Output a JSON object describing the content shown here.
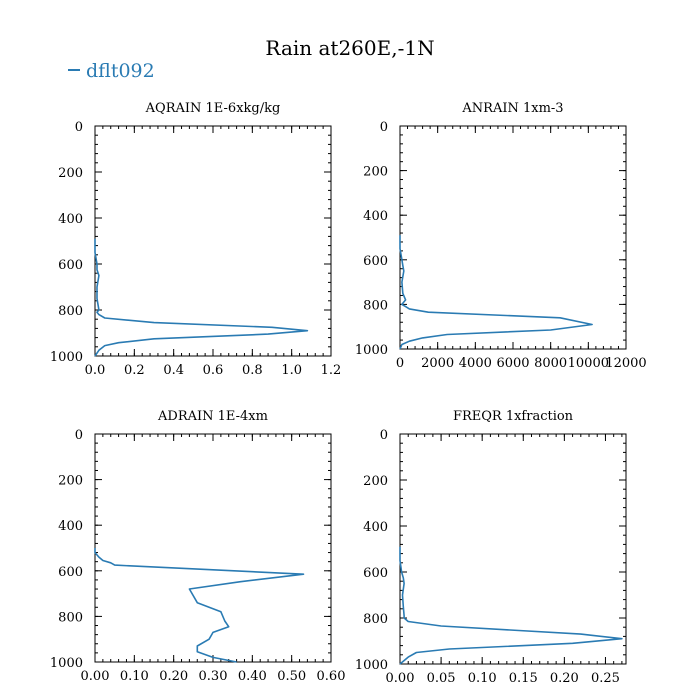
{
  "title": "Rain at260E,-1N",
  "legend": {
    "label": "dflt092",
    "color": "#2a7bb3"
  },
  "line_color": "#2a7bb3",
  "chart_data": [
    {
      "type": "line",
      "title": "AQRAIN  1E-6xkg/kg",
      "xlim": [
        0,
        1.2
      ],
      "ylim": [
        1000,
        0
      ],
      "xticks": [
        0,
        0.2,
        0.4,
        0.6,
        0.8,
        1.0,
        1.2
      ],
      "xtick_labels": [
        "0.0",
        "0.2",
        "0.4",
        "0.6",
        "0.8",
        "1.0",
        "1.2"
      ],
      "yticks": [
        0,
        200,
        400,
        600,
        800,
        1000
      ],
      "ytick_labels": [
        "0",
        "200",
        "400",
        "600",
        "800",
        "1000"
      ],
      "series": [
        {
          "x": [
            0.0,
            0.0,
            0.01,
            0.01,
            0.02,
            0.01,
            0.01,
            0.02,
            0.01,
            0.02,
            0.05,
            0.3,
            0.9,
            1.08,
            0.88,
            0.3,
            0.12,
            0.05,
            0.02,
            0.0
          ],
          "y": [
            490,
            550,
            600,
            625,
            650,
            700,
            750,
            800,
            810,
            820,
            835,
            855,
            875,
            890,
            905,
            925,
            942,
            955,
            975,
            1000
          ]
        }
      ]
    },
    {
      "type": "line",
      "title": "ANRAIN  1xm-3",
      "xlim": [
        0,
        12000
      ],
      "ylim": [
        1000,
        0
      ],
      "xticks": [
        0,
        2000,
        4000,
        6000,
        8000,
        10000,
        12000
      ],
      "xtick_labels": [
        "0",
        "2000",
        "4000",
        "6000",
        "8000",
        "10000",
        "12000"
      ],
      "yticks": [
        0,
        200,
        400,
        600,
        800,
        1000
      ],
      "ytick_labels": [
        "0",
        "200",
        "400",
        "600",
        "800",
        "1000"
      ],
      "series": [
        {
          "x": [
            0,
            0,
            100,
            150,
            200,
            100,
            150,
            300,
            100,
            300,
            500,
            1500,
            8500,
            10200,
            8000,
            2500,
            1200,
            500,
            100,
            0
          ],
          "y": [
            490,
            550,
            600,
            625,
            650,
            700,
            750,
            780,
            800,
            810,
            820,
            835,
            860,
            890,
            915,
            935,
            950,
            965,
            980,
            1000
          ]
        }
      ]
    },
    {
      "type": "line",
      "title": "ADRAIN  1E-4xm",
      "xlim": [
        0,
        0.6
      ],
      "ylim": [
        1000,
        0
      ],
      "xticks": [
        0,
        0.1,
        0.2,
        0.3,
        0.4,
        0.5,
        0.6
      ],
      "xtick_labels": [
        "0.00",
        "0.10",
        "0.20",
        "0.30",
        "0.40",
        "0.50",
        "0.60"
      ],
      "yticks": [
        0,
        200,
        400,
        600,
        800,
        1000
      ],
      "ytick_labels": [
        "0",
        "200",
        "400",
        "600",
        "800",
        "1000"
      ],
      "series": [
        {
          "x": [
            0.0,
            0.0,
            0.01,
            0.02,
            0.04,
            0.05,
            0.53,
            0.37,
            0.24,
            0.26,
            0.32,
            0.33,
            0.34,
            0.3,
            0.29,
            0.26,
            0.26,
            0.3,
            0.36
          ],
          "y": [
            500,
            520,
            540,
            555,
            565,
            575,
            615,
            648,
            680,
            740,
            780,
            820,
            845,
            870,
            900,
            930,
            955,
            980,
            1000
          ]
        }
      ]
    },
    {
      "type": "line",
      "title": "FREQR  1xfraction",
      "xlim": [
        0,
        0.275
      ],
      "ylim": [
        1000,
        0
      ],
      "xticks": [
        0,
        0.05,
        0.1,
        0.15,
        0.2,
        0.25
      ],
      "xtick_labels": [
        "0.00",
        "0.05",
        "0.10",
        "0.15",
        "0.20",
        "0.25"
      ],
      "yticks": [
        0,
        200,
        400,
        600,
        800,
        1000
      ],
      "ytick_labels": [
        "0",
        "200",
        "400",
        "600",
        "800",
        "1000"
      ],
      "series": [
        {
          "x": [
            0.0,
            0.0,
            0.002,
            0.004,
            0.005,
            0.003,
            0.004,
            0.005,
            0.005,
            0.01,
            0.05,
            0.22,
            0.27,
            0.21,
            0.06,
            0.02,
            0.01,
            0.0
          ],
          "y": [
            490,
            550,
            600,
            625,
            650,
            700,
            750,
            790,
            800,
            815,
            835,
            870,
            890,
            910,
            935,
            950,
            970,
            1000
          ]
        }
      ]
    }
  ]
}
